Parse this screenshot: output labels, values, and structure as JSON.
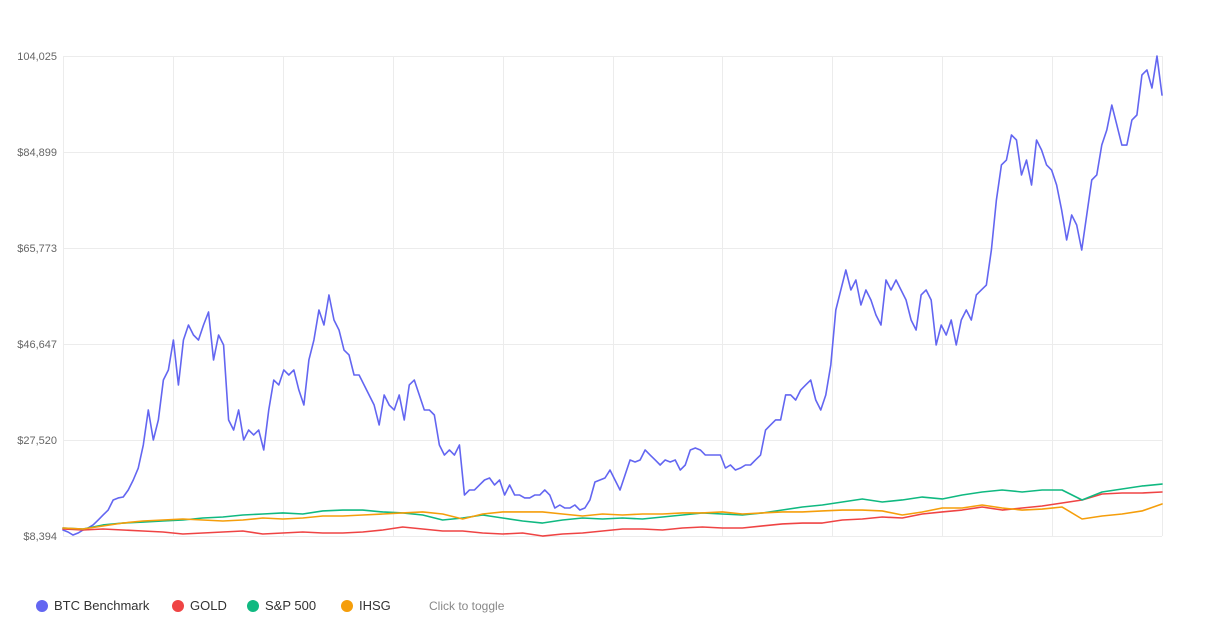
{
  "chart_data": {
    "type": "line",
    "ylim": [
      8394,
      104025
    ],
    "yticks": [
      8394,
      27520,
      46647,
      65773,
      84899,
      104025
    ],
    "ytick_labels": [
      "$8,394",
      "$27,520",
      "$46,647",
      "$65,773",
      "$84,899",
      "104,025"
    ],
    "grid": true,
    "legend_position": "bottom-left",
    "series": [
      {
        "name": "BTC Benchmark",
        "color": "#6366f1",
        "values": [
          9590,
          9190,
          8590,
          8990,
          9590,
          9990,
          10590,
          11580,
          12580,
          13570,
          15570,
          15970,
          16160,
          17560,
          19550,
          21940,
          26520,
          33500,
          27520,
          31510,
          39470,
          41470,
          47440,
          38480,
          47440,
          50430,
          48440,
          47440,
          50430,
          53020,
          43460,
          48440,
          46450,
          31510,
          29510,
          33500,
          27520,
          29510,
          28520,
          29510,
          25530,
          33500,
          39470,
          38480,
          41470,
          40470,
          41470,
          37480,
          34490,
          43460,
          47440,
          53420,
          50430,
          56410,
          51430,
          49440,
          45450,
          44460,
          40470,
          40470,
          38480,
          36490,
          34490,
          30510,
          36490,
          34490,
          33500,
          36490,
          31510,
          38480,
          39470,
          36490,
          33500,
          33500,
          32500,
          26520,
          24530,
          25530,
          24530,
          26520,
          16560,
          17560,
          17560,
          18560,
          19550,
          19950,
          18560,
          19550,
          16560,
          18560,
          16560,
          16560,
          15970,
          15970,
          16560,
          16560,
          17560,
          16560,
          13970,
          14570,
          13970,
          13970,
          14570,
          13570,
          13970,
          15570,
          19150,
          19550,
          19950,
          21540,
          19550,
          17560,
          20550,
          23540,
          23140,
          23540,
          25530,
          24530,
          23540,
          22540,
          23540,
          23140,
          23540,
          21540,
          22540,
          25530,
          25930,
          25530,
          24530,
          24530,
          24530,
          24530,
          21940,
          22540,
          21540,
          21940,
          22540,
          22540,
          23540,
          24530,
          29510,
          30510,
          31510,
          31510,
          36490,
          36490,
          35490,
          37480,
          38480,
          39470,
          35490,
          33500,
          36490,
          42460,
          53420,
          57410,
          61390,
          57410,
          59400,
          54420,
          57410,
          55410,
          52420,
          50430,
          59400,
          57410,
          59400,
          57410,
          55410,
          51430,
          49440,
          56410,
          57410,
          55410,
          46450,
          50430,
          48440,
          51430,
          46450,
          51430,
          53420,
          51430,
          56410,
          57410,
          58400,
          65370,
          75340,
          82310,
          83300,
          88290,
          87290,
          80320,
          83300,
          78320,
          87290,
          85300,
          82310,
          81310,
          78320,
          73340,
          67370,
          72350,
          70350,
          65370,
          72350,
          79320,
          80320,
          86290,
          89280,
          94260,
          90280,
          86290,
          86290,
          91270,
          92270,
          100240,
          101240,
          97650,
          104025,
          96250
        ]
      },
      {
        "name": "GOLD",
        "color": "#ef4444",
        "values": [
          9790,
          9590,
          9790,
          9590,
          9390,
          9190,
          8790,
          8990,
          9190,
          9390,
          8790,
          8990,
          9190,
          8990,
          8990,
          9190,
          9590,
          10190,
          9790,
          9390,
          9390,
          8990,
          8790,
          8990,
          8390,
          8790,
          8990,
          9390,
          9790,
          9790,
          9590,
          9990,
          10190,
          9990,
          9990,
          10390,
          10790,
          10980,
          10980,
          11580,
          11780,
          12180,
          11980,
          12780,
          13180,
          13570,
          14170,
          13570,
          13970,
          14370,
          14970,
          15570,
          16760,
          16960,
          16960,
          17160
        ]
      },
      {
        "name": "S&P 500",
        "color": "#10b981",
        "values": [
          9990,
          9790,
          10590,
          10980,
          11180,
          11380,
          11580,
          11980,
          12180,
          12580,
          12780,
          12980,
          12780,
          13380,
          13570,
          13570,
          13180,
          12980,
          12580,
          11580,
          11980,
          12580,
          11980,
          11380,
          10980,
          11580,
          11980,
          11780,
          11980,
          11780,
          12180,
          12580,
          12980,
          12780,
          12580,
          12980,
          13570,
          14170,
          14570,
          15170,
          15770,
          15170,
          15570,
          16160,
          15770,
          16560,
          17160,
          17560,
          17160,
          17560,
          17560,
          15570,
          17160,
          17760,
          18360,
          18750
        ]
      },
      {
        "name": "IHSG",
        "color": "#f59e0b",
        "values": [
          9990,
          9790,
          10390,
          10980,
          11380,
          11580,
          11780,
          11580,
          11380,
          11580,
          11980,
          11780,
          11980,
          12380,
          12380,
          12580,
          12780,
          12980,
          13180,
          12780,
          11780,
          12780,
          13180,
          13180,
          13180,
          12780,
          12380,
          12780,
          12580,
          12780,
          12780,
          12980,
          12980,
          13180,
          12780,
          12980,
          13180,
          13180,
          13380,
          13570,
          13570,
          13380,
          12580,
          13180,
          13970,
          13970,
          14570,
          13970,
          13570,
          13770,
          14170,
          11780,
          12380,
          12780,
          13380,
          14770
        ]
      }
    ]
  },
  "legend": {
    "hint": "Click to toggle"
  }
}
